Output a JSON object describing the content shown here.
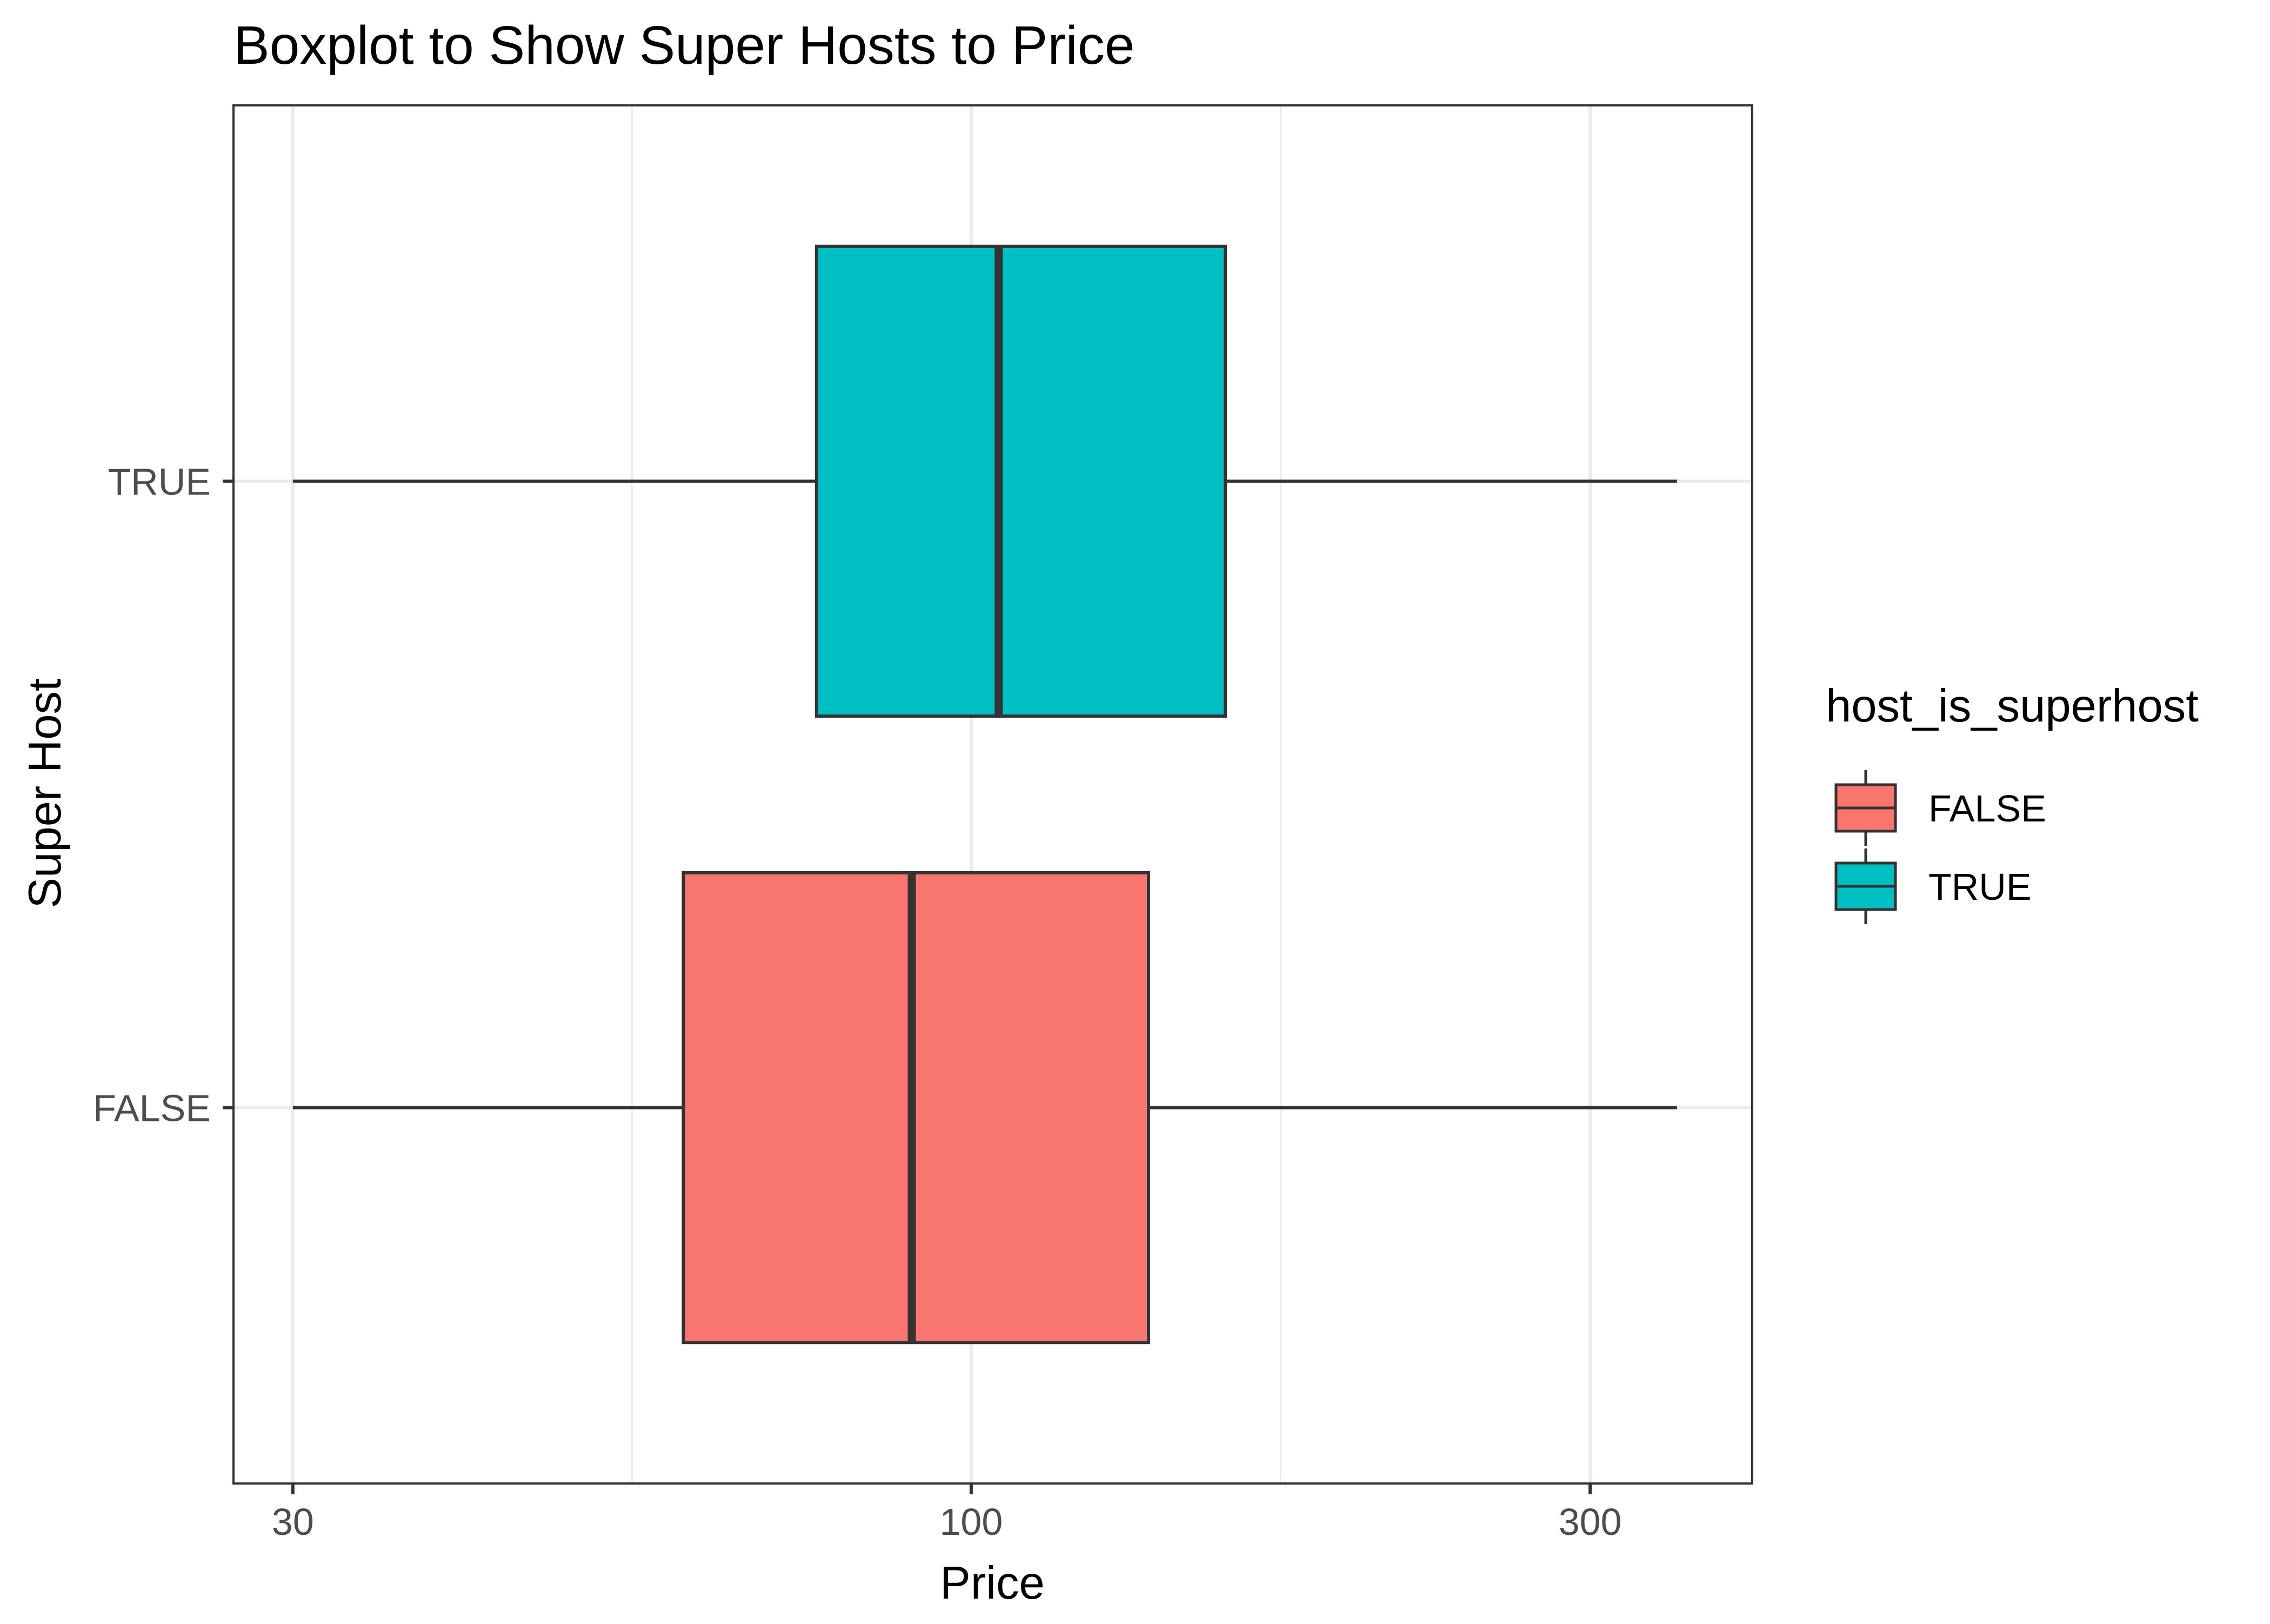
{
  "chart_data": {
    "type": "boxplot",
    "title": "Boxplot to Show Super Hosts to Price",
    "xlabel": "Price",
    "ylabel": "Super Host",
    "x_scale": "log10",
    "xlim": [
      27,
      400
    ],
    "x_ticks": [
      30,
      100,
      300
    ],
    "x_tick_labels": [
      "30",
      "100",
      "300"
    ],
    "x_minor_ticks": [
      54.77,
      173.2
    ],
    "categories": [
      "FALSE",
      "TRUE"
    ],
    "grid": true,
    "legend": {
      "title": "host_is_superhost",
      "position": "right",
      "entries": [
        {
          "label": "FALSE",
          "color": "#F8766D"
        },
        {
          "label": "TRUE",
          "color": "#00BFC4"
        }
      ]
    },
    "series": [
      {
        "category": "FALSE",
        "color": "#F8766D",
        "whisker_low": 30,
        "q1": 60,
        "median": 90,
        "q3": 137,
        "whisker_high": 350
      },
      {
        "category": "TRUE",
        "color": "#00BFC4",
        "whisker_low": 30,
        "q1": 76,
        "median": 105,
        "q3": 157,
        "whisker_high": 350
      }
    ]
  }
}
